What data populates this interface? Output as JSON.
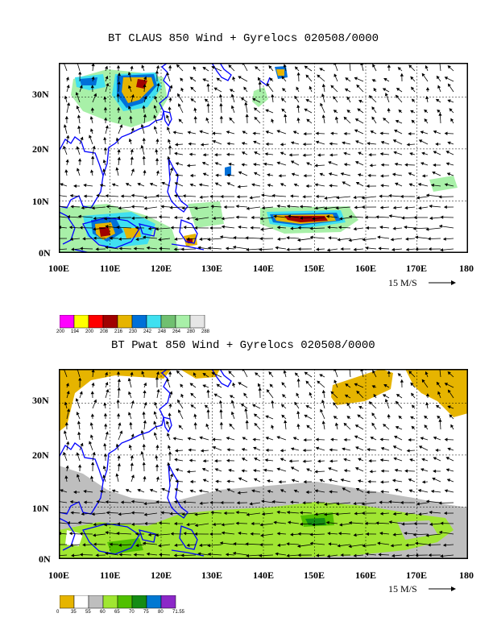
{
  "panels": [
    {
      "id": "top",
      "title": "BT CLAUS 850 Wind + Gyrelocs 020508/0000",
      "x_ticks": [
        "100E",
        "110E",
        "120E",
        "130E",
        "140E",
        "150E",
        "160E",
        "170E",
        "180"
      ],
      "y_ticks": [
        "0N",
        "10N",
        "20N",
        "30N"
      ],
      "vector_ref_label": "15 M/S",
      "legend": {
        "values": [
          "200",
          "194",
          "200",
          "208",
          "216",
          "230",
          "242",
          "248",
          "264",
          "280",
          "288"
        ],
        "colors": [
          "#ff00ff",
          "#ffff00",
          "#ff0000",
          "#a00000",
          "#e6b400",
          "#0070d8",
          "#40e0f0",
          "#70c070",
          "#a8f0a8",
          "#e6e6e6"
        ]
      }
    },
    {
      "id": "bottom",
      "title": "BT Pwat 850 Wind + Gyrelocs 020508/0000",
      "x_ticks": [
        "100E",
        "110E",
        "120E",
        "130E",
        "140E",
        "150E",
        "160E",
        "170E",
        "180"
      ],
      "y_ticks": [
        "0N",
        "10N",
        "20N",
        "30N"
      ],
      "vector_ref_label": "15 M/S",
      "legend": {
        "values": [
          "0",
          "35",
          "55",
          "60",
          "65",
          "70",
          "75",
          "80",
          "71.55"
        ],
        "colors": [
          "#e6b400",
          "#ffffff",
          "#bebebe",
          "#a0e632",
          "#50c000",
          "#148c14",
          "#0078d2",
          "#8c28c8"
        ]
      }
    }
  ],
  "map_domain": {
    "lon_min": 100,
    "lon_max": 180,
    "lat_min": 0,
    "lat_max": 36
  },
  "colors": {
    "coast": "#0000ff",
    "frame": "#000000",
    "grid": "#000000"
  }
}
